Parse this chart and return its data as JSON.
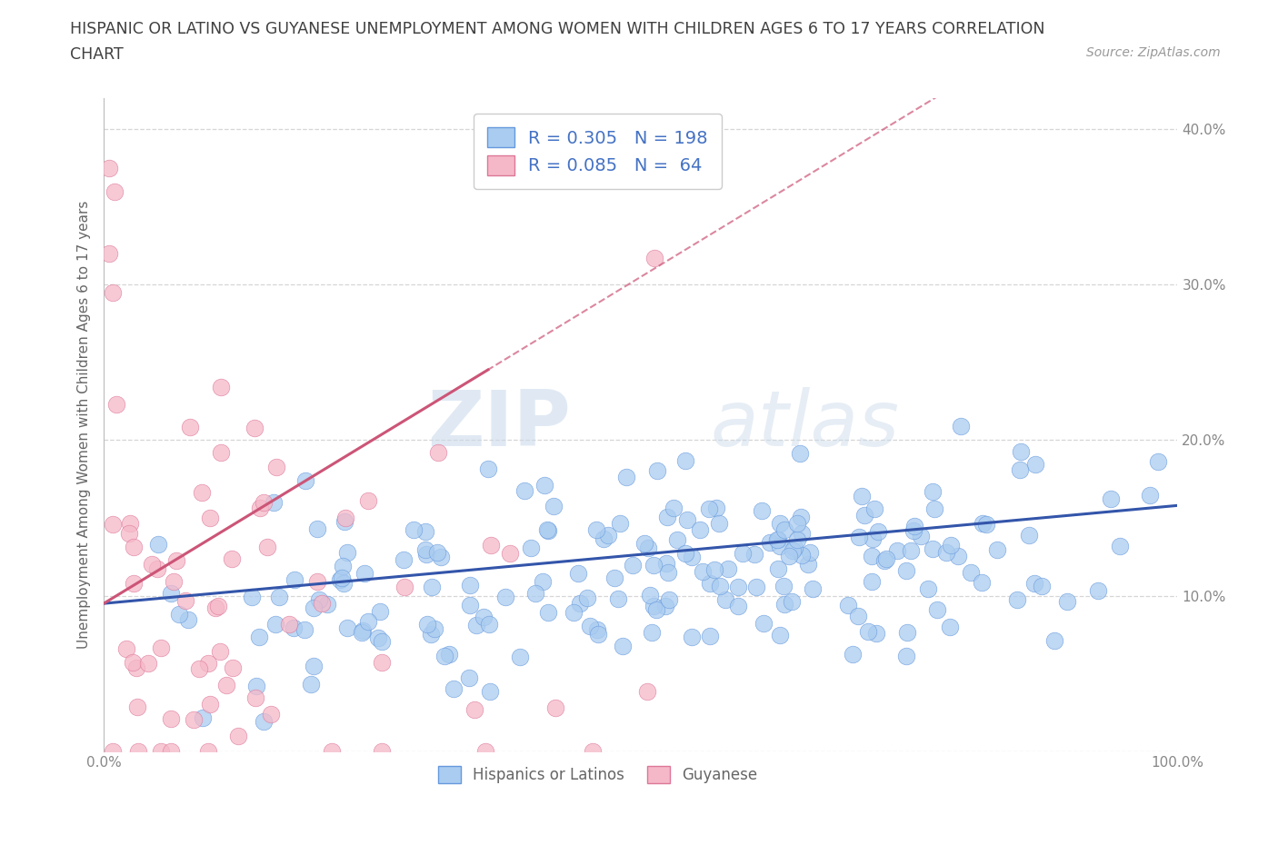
{
  "title_line1": "HISPANIC OR LATINO VS GUYANESE UNEMPLOYMENT AMONG WOMEN WITH CHILDREN AGES 6 TO 17 YEARS CORRELATION",
  "title_line2": "CHART",
  "source": "Source: ZipAtlas.com",
  "ylabel": "Unemployment Among Women with Children Ages 6 to 17 years",
  "xlim": [
    0.0,
    1.0
  ],
  "ylim": [
    0.0,
    0.42
  ],
  "xticks": [
    0.0,
    0.1,
    0.2,
    0.3,
    0.4,
    0.5,
    0.6,
    0.7,
    0.8,
    0.9,
    1.0
  ],
  "xticklabels": [
    "0.0%",
    "",
    "",
    "",
    "",
    "",
    "",
    "",
    "",
    "",
    "100.0%"
  ],
  "yticks": [
    0.0,
    0.1,
    0.2,
    0.3,
    0.4
  ],
  "yticklabels": [
    "",
    "10.0%",
    "20.0%",
    "30.0%",
    "40.0%"
  ],
  "R_blue": 0.305,
  "N_blue": 198,
  "R_pink": 0.085,
  "N_pink": 64,
  "blue_color": "#aaccf0",
  "pink_color": "#f5b8c8",
  "blue_edge_color": "#6699dd",
  "pink_edge_color": "#dd7799",
  "blue_line_color": "#3355aa",
  "pink_line_color": "#cc5577",
  "legend_label_blue": "Hispanics or Latinos",
  "legend_label_pink": "Guyanese",
  "watermark_zip": "ZIP",
  "watermark_atlas": "atlas",
  "background_color": "#ffffff",
  "grid_color": "#cccccc",
  "title_color": "#404040",
  "legend_text_color": "#4472c4",
  "axis_tick_color": "#5599cc",
  "seed_blue": 12,
  "seed_pink": 55
}
